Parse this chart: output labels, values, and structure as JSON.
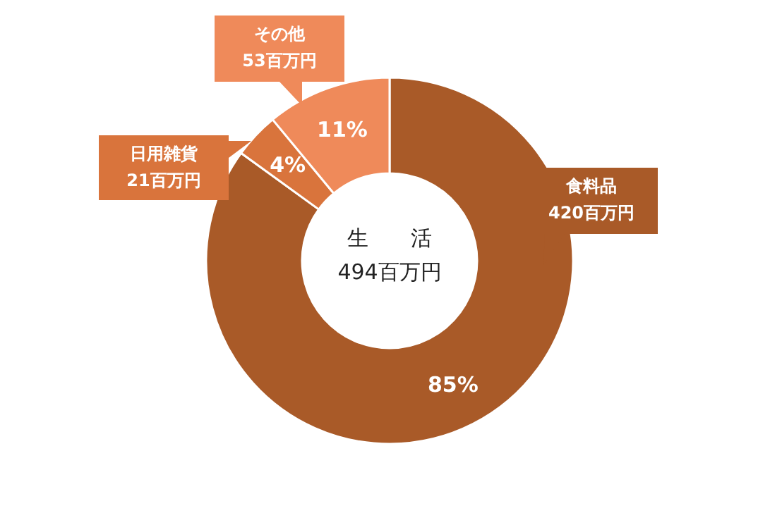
{
  "chart_data": {
    "type": "donut",
    "title": "生　　活",
    "subtitle": "494百万円",
    "categories": [
      "食料品",
      "日用雑貨",
      "その他"
    ],
    "values": [
      85,
      4,
      11
    ],
    "colors": [
      "#a95a28",
      "#d9743c",
      "#ef8a5a"
    ],
    "value_labels": [
      "85%",
      "4%",
      "11%"
    ],
    "annotations": [
      "420百万円",
      "21百万円",
      "53百万円"
    ]
  }
}
